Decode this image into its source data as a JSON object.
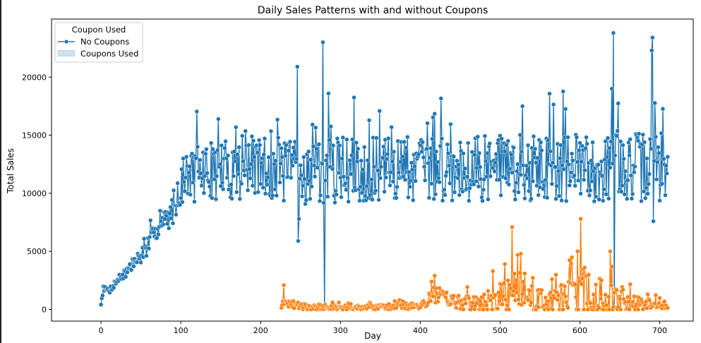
{
  "chart_data": {
    "type": "line",
    "title": "Daily Sales Patterns with and without Coupons",
    "xlabel": "Day",
    "ylabel": "Total Sales",
    "xlim": [
      -62,
      742
    ],
    "ylim": [
      -1000,
      25000
    ],
    "x_ticks": [
      0,
      100,
      200,
      300,
      400,
      500,
      600,
      700
    ],
    "y_ticks": [
      0,
      5000,
      10000,
      15000,
      20000
    ],
    "grid": false,
    "legend": {
      "title": "Coupon Used",
      "placement": "top-left",
      "entries": [
        "No Coupons",
        "Coupons Used"
      ]
    },
    "series": [
      {
        "name": "No Coupons",
        "color": "#1f77b4",
        "marker": "circle",
        "keypoints": [
          [
            0,
            500
          ],
          [
            3,
            1800
          ],
          [
            10,
            1600
          ],
          [
            20,
            2500
          ],
          [
            30,
            3100
          ],
          [
            40,
            3900
          ],
          [
            50,
            4600
          ],
          [
            60,
            5600
          ],
          [
            70,
            6900
          ],
          [
            80,
            7600
          ],
          [
            90,
            8500
          ],
          [
            100,
            10600
          ],
          [
            110,
            11400
          ],
          [
            120,
            11700
          ],
          [
            130,
            11900
          ],
          [
            150,
            12000
          ],
          [
            170,
            12100
          ],
          [
            200,
            12200
          ],
          [
            225,
            12000
          ],
          [
            245,
            11800
          ],
          [
            275,
            11800
          ],
          [
            300,
            12000
          ],
          [
            350,
            12000
          ],
          [
            400,
            12100
          ],
          [
            450,
            12200
          ],
          [
            500,
            12100
          ],
          [
            550,
            12200
          ],
          [
            600,
            12200
          ],
          [
            650,
            12200
          ],
          [
            710,
            12400
          ]
        ],
        "amplitude_keypoints": [
          [
            0,
            150
          ],
          [
            20,
            400
          ],
          [
            60,
            800
          ],
          [
            95,
            1200
          ],
          [
            110,
            2300
          ],
          [
            150,
            2600
          ],
          [
            200,
            2800
          ],
          [
            400,
            2800
          ],
          [
            600,
            3000
          ],
          [
            710,
            3000
          ]
        ],
        "outliers": [
          [
            246,
            20900
          ],
          [
            247,
            5900
          ],
          [
            248,
            7800
          ],
          [
            278,
            23000
          ],
          [
            280,
            100
          ],
          [
            285,
            18600
          ],
          [
            640,
            19000
          ],
          [
            642,
            23800
          ],
          [
            643,
            200
          ],
          [
            690,
            22300
          ],
          [
            691,
            23400
          ],
          [
            692,
            7600
          ]
        ]
      },
      {
        "name": "Coupons Used",
        "color": "#ff7f0e",
        "marker": "circle",
        "start_day": 226,
        "keypoints": [
          [
            226,
            300
          ],
          [
            230,
            500
          ],
          [
            240,
            400
          ],
          [
            260,
            200
          ],
          [
            280,
            150
          ],
          [
            300,
            150
          ],
          [
            350,
            200
          ],
          [
            400,
            300
          ],
          [
            410,
            700
          ],
          [
            420,
            1300
          ],
          [
            440,
            700
          ],
          [
            460,
            400
          ],
          [
            480,
            300
          ],
          [
            500,
            900
          ],
          [
            520,
            1500
          ],
          [
            540,
            800
          ],
          [
            560,
            500
          ],
          [
            580,
            700
          ],
          [
            600,
            1500
          ],
          [
            620,
            800
          ],
          [
            640,
            1200
          ],
          [
            660,
            600
          ],
          [
            680,
            500
          ],
          [
            710,
            400
          ]
        ],
        "amplitude_keypoints": [
          [
            226,
            300
          ],
          [
            300,
            200
          ],
          [
            400,
            300
          ],
          [
            420,
            900
          ],
          [
            450,
            600
          ],
          [
            500,
            1400
          ],
          [
            520,
            2000
          ],
          [
            560,
            900
          ],
          [
            600,
            2300
          ],
          [
            640,
            1500
          ],
          [
            680,
            500
          ],
          [
            710,
            300
          ]
        ],
        "outliers": [
          [
            229,
            2100
          ],
          [
            414,
            2400
          ],
          [
            418,
            2900
          ],
          [
            506,
            3900
          ],
          [
            510,
            2500
          ],
          [
            515,
            7100
          ],
          [
            522,
            4700
          ],
          [
            526,
            4800
          ],
          [
            531,
            3100
          ],
          [
            565,
            2600
          ],
          [
            597,
            5000
          ],
          [
            601,
            7800
          ],
          [
            606,
            3600
          ],
          [
            608,
            2900
          ],
          [
            638,
            5000
          ],
          [
            640,
            3700
          ],
          [
            642,
            200
          ]
        ]
      }
    ]
  }
}
